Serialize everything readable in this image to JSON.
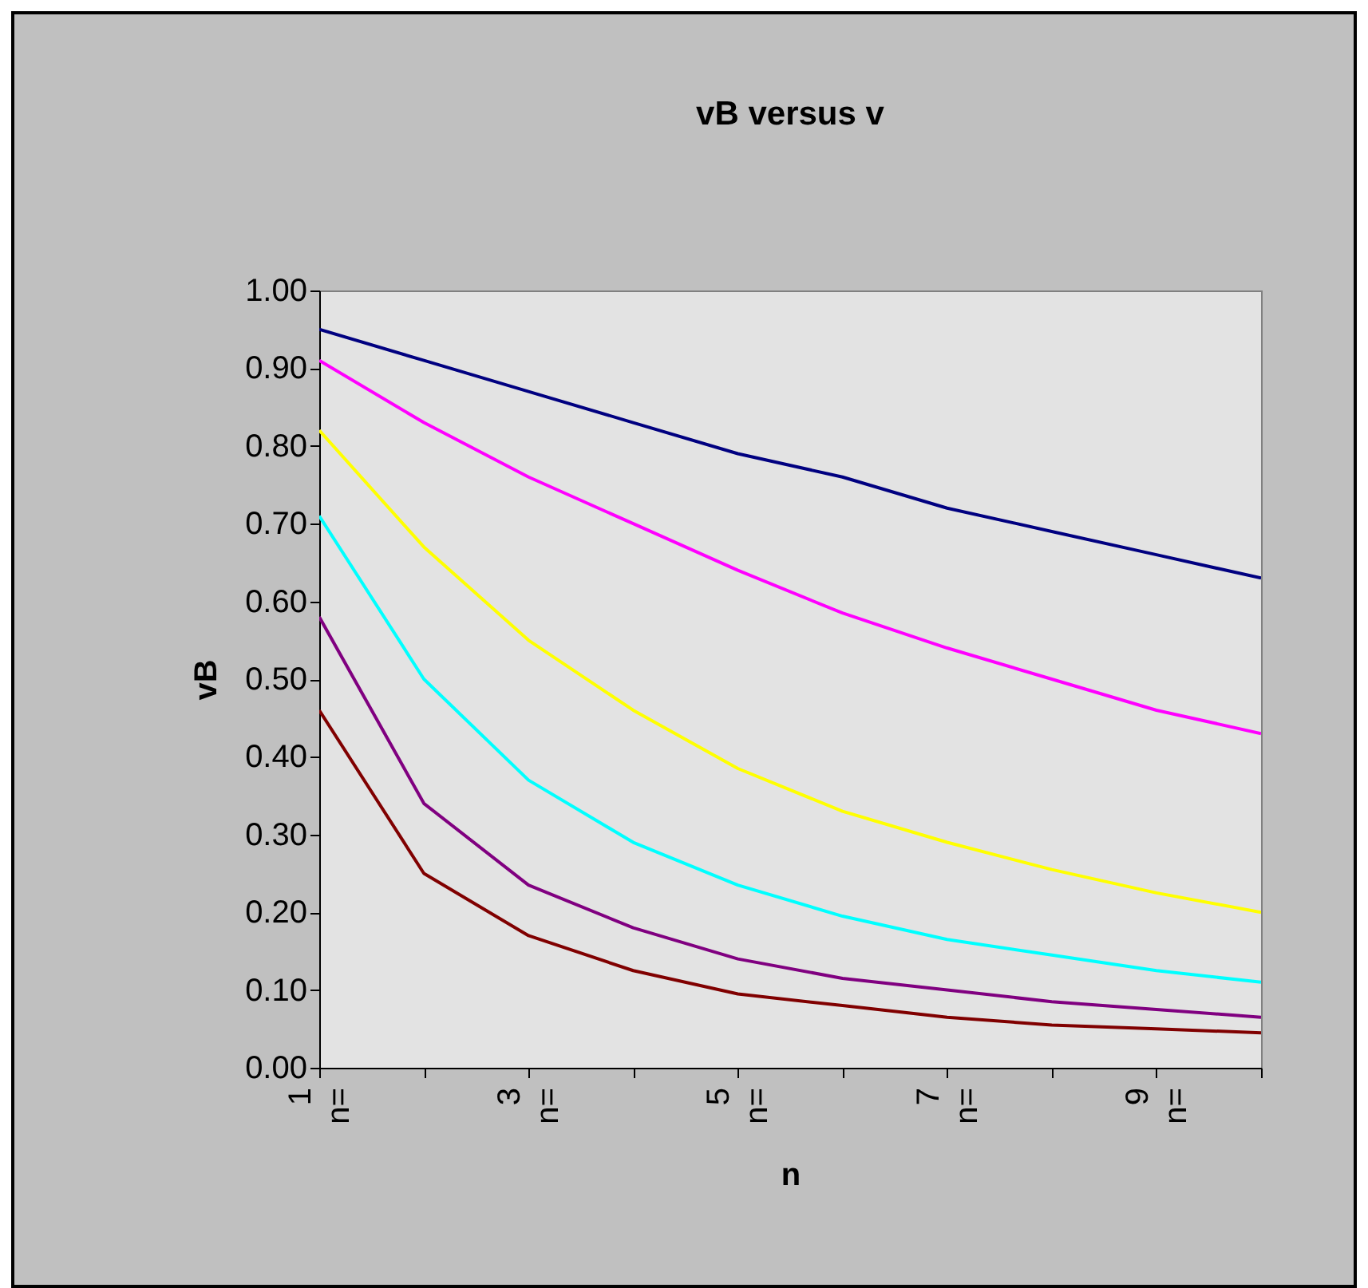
{
  "chart_data": {
    "type": "line",
    "title": "vB versus v",
    "xlabel": "n",
    "ylabel": "vB",
    "x": [
      1,
      2,
      3,
      4,
      5,
      6,
      7,
      8,
      9,
      10
    ],
    "xlim": [
      1,
      10
    ],
    "xticks": [
      {
        "value": 1,
        "label": "1\nn="
      },
      {
        "value": 2,
        "label": null
      },
      {
        "value": 3,
        "label": "3\nn="
      },
      {
        "value": 4,
        "label": null
      },
      {
        "value": 5,
        "label": "5\nn="
      },
      {
        "value": 6,
        "label": null
      },
      {
        "value": 7,
        "label": "7\nn="
      },
      {
        "value": 8,
        "label": null
      },
      {
        "value": 9,
        "label": "9\nn="
      },
      {
        "value": 10,
        "label": null
      }
    ],
    "ylim": [
      0,
      1
    ],
    "yticks": [
      {
        "value": 0,
        "label": "0.00"
      },
      {
        "value": 0.1,
        "label": "0.10"
      },
      {
        "value": 0.2,
        "label": "0.20"
      },
      {
        "value": 0.3,
        "label": "0.30"
      },
      {
        "value": 0.4,
        "label": "0.40"
      },
      {
        "value": 0.5,
        "label": "0.50"
      },
      {
        "value": 0.6,
        "label": "0.60"
      },
      {
        "value": 0.7,
        "label": "0.70"
      },
      {
        "value": 0.8,
        "label": "0.80"
      },
      {
        "value": 0.9,
        "label": "0.90"
      },
      {
        "value": 1,
        "label": "1.00"
      }
    ],
    "grid": false,
    "marker": "none",
    "line_style": "solid",
    "series": [
      {
        "color": "#000080",
        "values": [
          0.95,
          0.91,
          0.87,
          0.83,
          0.79,
          0.76,
          0.72,
          0.69,
          0.66,
          0.63
        ]
      },
      {
        "color": "#ff00ff",
        "values": [
          0.91,
          0.83,
          0.76,
          0.7,
          0.64,
          0.585,
          0.54,
          0.5,
          0.46,
          0.43
        ]
      },
      {
        "color": "#ffff00",
        "values": [
          0.82,
          0.67,
          0.55,
          0.46,
          0.385,
          0.33,
          0.29,
          0.255,
          0.225,
          0.2
        ]
      },
      {
        "color": "#00ffff",
        "values": [
          0.71,
          0.5,
          0.37,
          0.29,
          0.235,
          0.195,
          0.165,
          0.145,
          0.125,
          0.11
        ]
      },
      {
        "color": "#800080",
        "values": [
          0.58,
          0.34,
          0.235,
          0.18,
          0.14,
          0.115,
          0.1,
          0.085,
          0.075,
          0.065
        ]
      },
      {
        "color": "#800000",
        "values": [
          0.46,
          0.25,
          0.17,
          0.125,
          0.095,
          0.08,
          0.065,
          0.055,
          0.05,
          0.045
        ]
      }
    ]
  }
}
